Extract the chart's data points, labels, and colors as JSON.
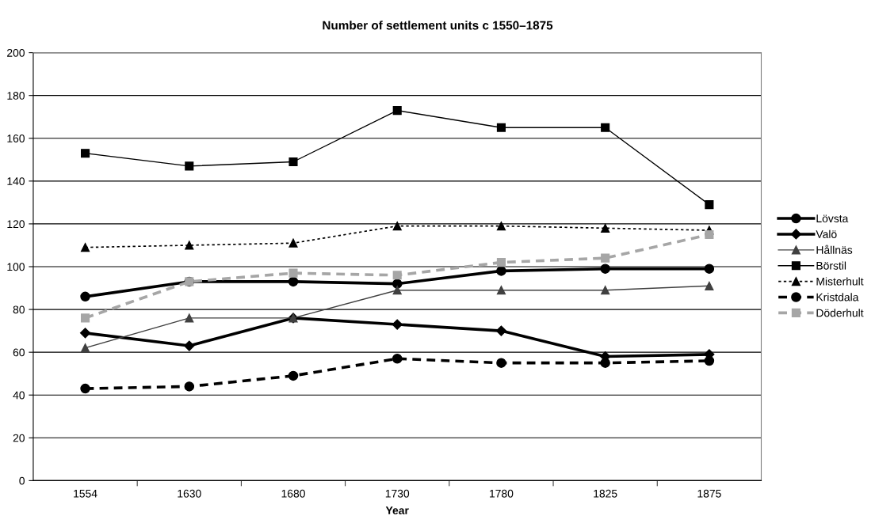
{
  "chart_data": {
    "type": "line",
    "title": "Number of settlement units c 1550–1875",
    "xlabel": "Year",
    "categories": [
      "1554",
      "1630",
      "1680",
      "1730",
      "1780",
      "1825",
      "1875"
    ],
    "ylim": [
      0,
      200
    ],
    "yticks": [
      0,
      20,
      40,
      60,
      80,
      100,
      120,
      140,
      160,
      180,
      200
    ],
    "grid": "y",
    "legend": "right",
    "series": [
      {
        "name": "Lövsta",
        "color": "#000000",
        "marker": "circle",
        "line_style": "solid",
        "values": [
          86,
          93,
          93,
          92,
          98,
          99,
          99
        ]
      },
      {
        "name": "Valö",
        "color": "#000000",
        "marker": "diamond",
        "line_style": "solid",
        "values": [
          69,
          63,
          76,
          73,
          70,
          58,
          59
        ]
      },
      {
        "name": "Hållnäs",
        "color": "#404040",
        "marker": "triangle",
        "line_style": "solid",
        "values": [
          62,
          76,
          76,
          89,
          89,
          89,
          91
        ]
      },
      {
        "name": "Börstil",
        "color": "#000000",
        "marker": "square",
        "line_style": "solid",
        "values": [
          153,
          147,
          149,
          173,
          165,
          165,
          129
        ]
      },
      {
        "name": "Misterhult",
        "color": "#000000",
        "marker": "triangle",
        "line_style": "dotted",
        "values": [
          109,
          110,
          111,
          119,
          119,
          118,
          117
        ]
      },
      {
        "name": "Kristdala",
        "color": "#000000",
        "marker": "circle",
        "line_style": "dashed",
        "values": [
          43,
          44,
          49,
          57,
          55,
          55,
          56
        ]
      },
      {
        "name": "Döderhult",
        "color": "#a6a6a6",
        "marker": "square",
        "line_style": "dashed",
        "values": [
          76,
          93,
          97,
          96,
          102,
          104,
          115
        ]
      }
    ]
  }
}
